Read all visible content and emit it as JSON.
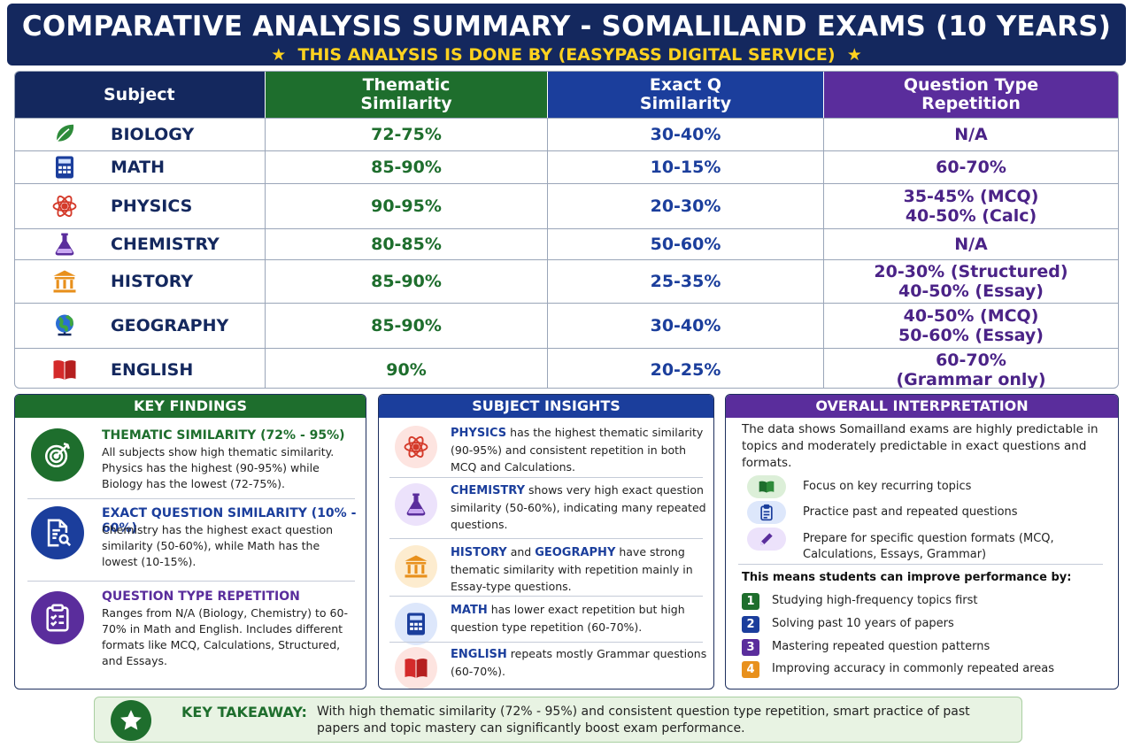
{
  "header": {
    "title": "COMPARATIVE ANALYSIS SUMMARY - SOMALILAND EXAMS (10 YEARS)",
    "subtitle": "THIS ANALYSIS IS DONE BY (EASYPASS DIGITAL SERVICE)",
    "star": "★"
  },
  "table": {
    "headers": {
      "subject": "Subject",
      "thematic": [
        "Thematic",
        "Similarity"
      ],
      "exact": [
        "Exact Q",
        "Similarity"
      ],
      "qtype": [
        "Question Type",
        "Repetition"
      ]
    },
    "rows": [
      {
        "subject": "BIOLOGY",
        "icon": "leaf-icon",
        "thematic": "72-75%",
        "exact": "30-40%",
        "qtype": [
          "N/A"
        ]
      },
      {
        "subject": "MATH",
        "icon": "calculator-icon",
        "thematic": "85-90%",
        "exact": "10-15%",
        "qtype": [
          "60-70%"
        ]
      },
      {
        "subject": "PHYSICS",
        "icon": "atom-icon",
        "thematic": "90-95%",
        "exact": "20-30%",
        "qtype": [
          "35-45% (MCQ)",
          "40-50% (Calc)"
        ]
      },
      {
        "subject": "CHEMISTRY",
        "icon": "flask-icon",
        "thematic": "80-85%",
        "exact": "50-60%",
        "qtype": [
          "N/A"
        ]
      },
      {
        "subject": "HISTORY",
        "icon": "columns-icon",
        "thematic": "85-90%",
        "exact": "25-35%",
        "qtype": [
          "20-30% (Structured)",
          "40-50% (Essay)"
        ]
      },
      {
        "subject": "GEOGRAPHY",
        "icon": "globe-icon",
        "thematic": "85-90%",
        "exact": "30-40%",
        "qtype": [
          "40-50% (MCQ)",
          "50-60% (Essay)"
        ]
      },
      {
        "subject": "ENGLISH",
        "icon": "book-icon",
        "thematic": "90%",
        "exact": "20-25%",
        "qtype": [
          "60-70%",
          "(Grammar only)"
        ]
      }
    ]
  },
  "key_findings": {
    "heading": "KEY FINDINGS",
    "items": [
      {
        "icon": "target-icon",
        "title": "THEMATIC SIMILARITY (72% - 95%)",
        "text": "All subjects show high thematic similarity. Physics has the highest (90-95%) while Biology has the lowest (72-75%)."
      },
      {
        "icon": "document-search-icon",
        "title": "EXACT QUESTION SIMILARITY (10% - 60%)",
        "text": "Chemistry has the highest exact question similarity (50-60%), while Math has the lowest (10-15%)."
      },
      {
        "icon": "clipboard-icon",
        "title": "QUESTION TYPE REPETITION",
        "text": "Ranges from N/A (Biology, Chemistry) to 60-70% in Math and English. Includes different formats like MCQ, Calculations, Structured, and Essays."
      }
    ]
  },
  "subject_insights": {
    "heading": "SUBJECT INSIGHTS",
    "items": [
      {
        "icon": "atom-icon",
        "bold1": "PHYSICS",
        "mid": "",
        "bold2": "",
        "text": " has the highest thematic similarity (90-95%) and consistent repetition in both MCQ and Calculations."
      },
      {
        "icon": "flask-icon",
        "bold1": "CHEMISTRY",
        "mid": "",
        "bold2": "",
        "text": " shows very high exact question similarity (50-60%), indicating many repeated questions."
      },
      {
        "icon": "columns-icon",
        "bold1": "HISTORY",
        "mid": " and ",
        "bold2": "GEOGRAPHY",
        "text": " have strong thematic similarity with repetition mainly in Essay-type questions."
      },
      {
        "icon": "calculator-icon",
        "bold1": "MATH",
        "mid": "",
        "bold2": "",
        "text": " has lower exact repetition but high question type repetition (60-70%)."
      },
      {
        "icon": "book-icon",
        "bold1": "ENGLISH",
        "mid": "",
        "bold2": "",
        "text": " repeats mostly Grammar questions (60-70%)."
      }
    ]
  },
  "overall": {
    "heading": "OVERALL INTERPRETATION",
    "intro": "The data shows Somailland exams are highly predictable in topics and moderately predictable in exact questions and formats.",
    "tips": [
      {
        "icon": "book-open-icon",
        "text": "Focus on key recurring topics"
      },
      {
        "icon": "clipboard-list-icon",
        "text": "Practice past and repeated questions"
      },
      {
        "icon": "pencil-icon",
        "text": "Prepare for specific question formats (MCQ, Calculations, Essays, Grammar)"
      }
    ],
    "means": "This means students can improve performance by:",
    "steps": [
      {
        "n": "1",
        "text": "Studying high-frequency topics first",
        "color": "#1e6e2d"
      },
      {
        "n": "2",
        "text": "Solving past 10 years of papers",
        "color": "#1b3e9c"
      },
      {
        "n": "3",
        "text": "Mastering repeated question patterns",
        "color": "#5a2d9c"
      },
      {
        "n": "4",
        "text": "Improving accuracy in commonly repeated areas",
        "color": "#e8901c"
      }
    ]
  },
  "takeaway": {
    "icon": "star-icon",
    "label": "KEY TAKEAWAY:",
    "text": "With high thematic similarity (72% - 95%) and consistent question type repetition, smart practice of past papers and topic mastery can significantly boost exam performance."
  },
  "colors": {
    "navy": "#14285e",
    "green": "#1e6e2d",
    "blue": "#1b3e9c",
    "purple": "#5a2d9c",
    "gold": "#ffd21f",
    "orange": "#e8901c"
  }
}
